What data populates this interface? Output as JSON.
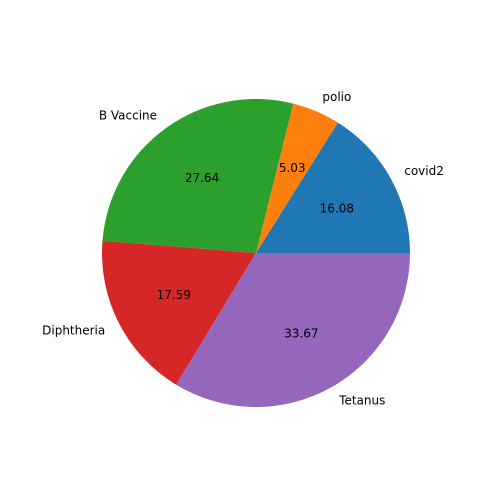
{
  "chart_data": {
    "type": "pie",
    "title": "",
    "start_angle_deg": 0,
    "direction": "counterclockwise",
    "value_format": "2 decimals",
    "slices": [
      {
        "label": "covid2",
        "value": 16.08,
        "color": "#1f77b4"
      },
      {
        "label": "polio",
        "value": 5.03,
        "color": "#ff7f0e"
      },
      {
        "label": "B Vaccine",
        "value": 27.64,
        "color": "#2ca02c"
      },
      {
        "label": "Diphtheria",
        "value": 17.59,
        "color": "#d62728"
      },
      {
        "label": "Tetanus",
        "value": 33.67,
        "color": "#9467bd"
      }
    ]
  }
}
